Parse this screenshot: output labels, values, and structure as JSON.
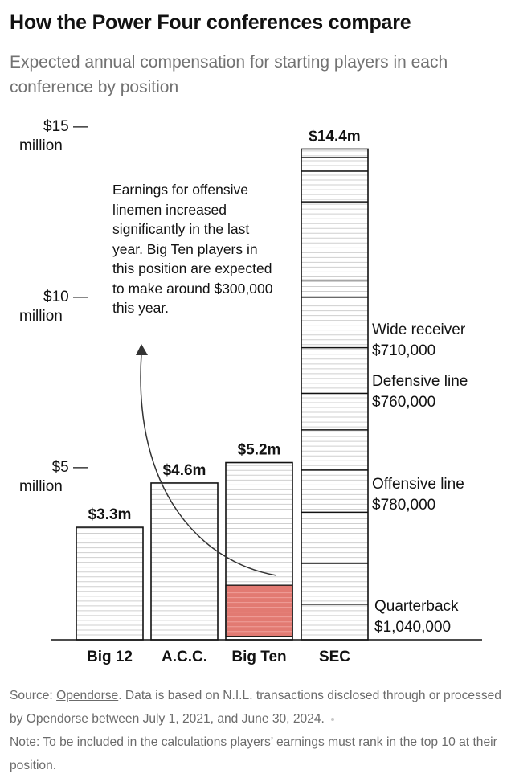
{
  "header": {
    "title": "How the Power Four conferences compare",
    "subtitle": "Expected annual compensation for starting players in each conference by position"
  },
  "chart_data": {
    "type": "bar",
    "stacked": true,
    "categories": [
      "Big 12",
      "A.C.C.",
      "Big Ten",
      "SEC"
    ],
    "totals": [
      3.3,
      4.6,
      5.2,
      14.4
    ],
    "total_labels": [
      "$3.3m",
      "$4.6m",
      "$5.2m",
      "$14.4m"
    ],
    "unit": "million dollars",
    "ylim": [
      0,
      15
    ],
    "yticks": [
      {
        "value": 5,
        "label": "$5 —",
        "unit": "million"
      },
      {
        "value": 10,
        "label": "$10 —",
        "unit": "million"
      },
      {
        "value": 15,
        "label": "$15 —",
        "unit": "million"
      }
    ],
    "segment_labels": [
      {
        "position": "Quarterback",
        "value": "$1,040,000"
      },
      {
        "position": "Offensive line",
        "value": "$780,000"
      },
      {
        "position": "Defensive line",
        "value": "$760,000"
      },
      {
        "position": "Wide receiver",
        "value": "$710,000"
      }
    ],
    "highlight": {
      "category": "Big Ten",
      "position": "Offensive line",
      "value_m": 1.6,
      "color": "#e27a72"
    },
    "annotation": "Earnings for offensive linemen increased significantly in the last year. Big Ten players in this position are expected to make around $300,000 this year.",
    "grid": false,
    "colors": {
      "bar_outline": "#121212",
      "stripe": "#cfcfcf",
      "highlight": "#e27a72"
    }
  },
  "footer": {
    "source_prefix": "Source: ",
    "source_link": "Opendorse",
    "source_rest": ". Data is based on N.I.L. transactions disclosed through or processed by Opendorse between July 1, 2021, and June 30, 2024.",
    "note": "Note: To be included in the calculations players’ earnings must rank in the top 10 at their position."
  }
}
